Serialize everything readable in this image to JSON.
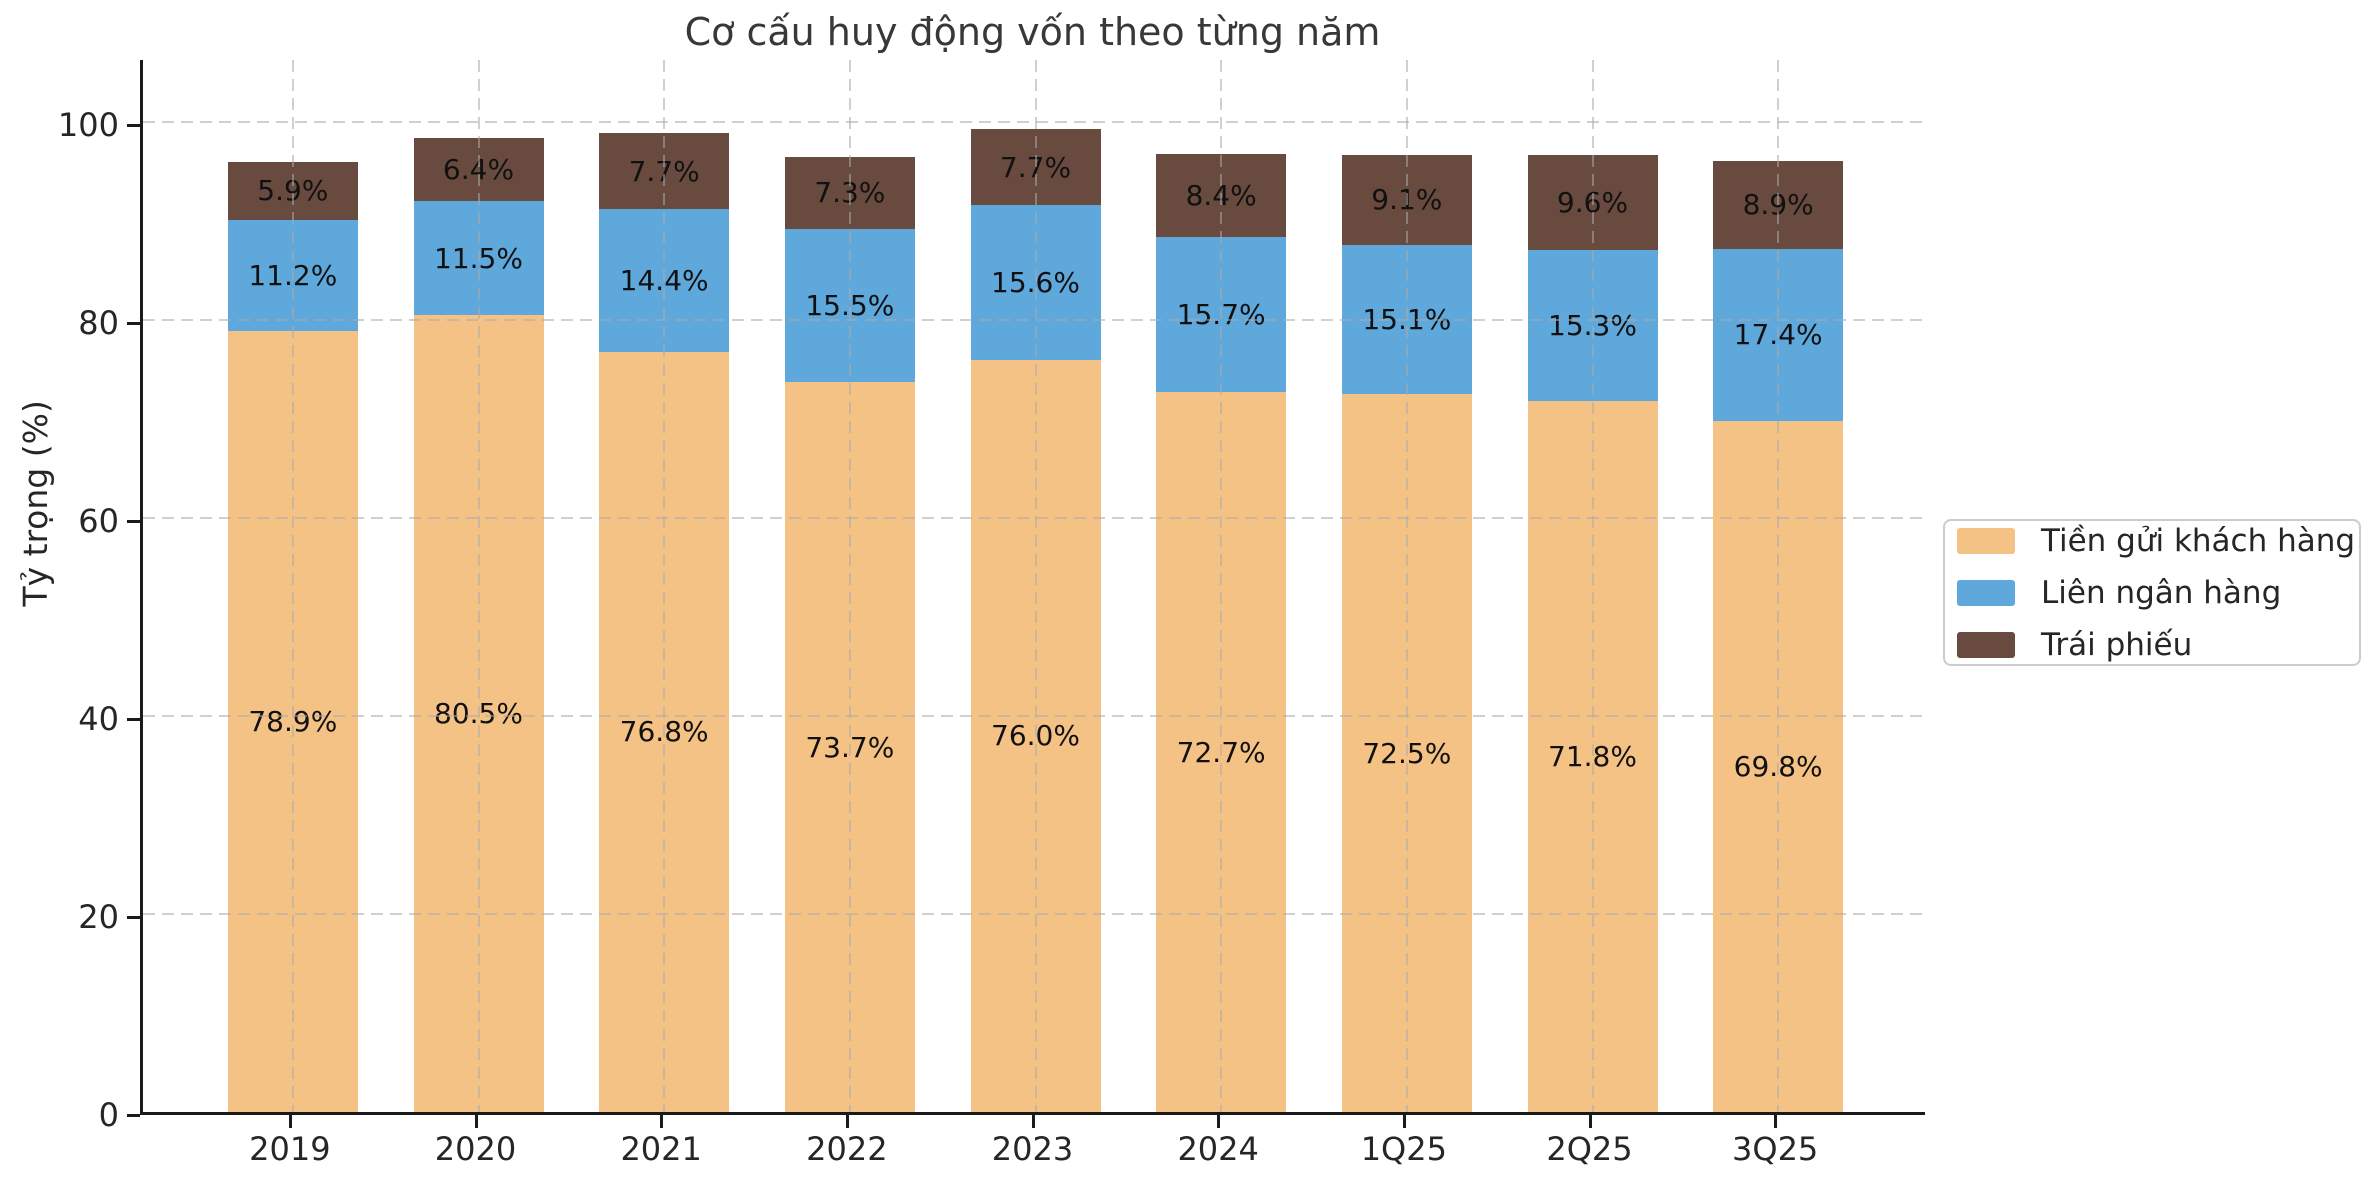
{
  "figure": {
    "title": "Cơ cấu huy động vốn theo từng năm",
    "ylabel": "Tỷ trọng (%)"
  },
  "chart_data": {
    "type": "bar",
    "stacked": true,
    "title": "Cơ cấu huy động vốn theo từng năm",
    "xlabel": "",
    "ylabel": "Tỷ trọng (%)",
    "categories": [
      "2019",
      "2020",
      "2021",
      "2022",
      "2023",
      "2024",
      "1Q25",
      "2Q25",
      "3Q25"
    ],
    "series": [
      {
        "name": "Tiền gửi khách hàng",
        "color": "#F5C285",
        "values": [
          78.9,
          80.5,
          76.8,
          73.7,
          76.0,
          72.7,
          72.5,
          71.8,
          69.8
        ]
      },
      {
        "name": "Liên ngân hàng",
        "color": "#5EA8DC",
        "values": [
          11.2,
          11.5,
          14.4,
          15.5,
          15.6,
          15.7,
          15.1,
          15.3,
          17.4
        ]
      },
      {
        "name": "Trái phiếu",
        "color": "#684B3E",
        "values": [
          5.9,
          6.4,
          7.7,
          7.3,
          7.7,
          8.4,
          9.1,
          9.6,
          8.9
        ]
      }
    ],
    "value_label_suffix": "%",
    "yticks": [
      0,
      20,
      40,
      60,
      80,
      100
    ],
    "ylim": [
      0,
      106.5
    ],
    "grid": true,
    "grid_style": "dashed",
    "legend_position": "center-right-outside"
  },
  "colors": {
    "spine": "#1a1a1a",
    "grid": "#aaaaaa",
    "text": "#262626",
    "legend_border": "#cccccc",
    "background": "#ffffff"
  }
}
